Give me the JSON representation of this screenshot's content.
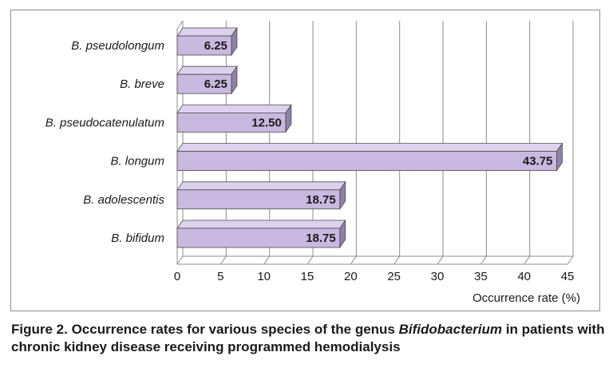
{
  "chart_data": {
    "type": "bar",
    "orientation": "horizontal",
    "style": "3d",
    "categories": [
      "B. pseudolongum",
      "B. breve",
      "B. pseudocatenulatum",
      "B. longum",
      "B. adolescentis",
      "B. bifidum"
    ],
    "values": [
      6.25,
      6.25,
      12.5,
      43.75,
      18.75,
      18.75
    ],
    "data_labels": [
      "6.25",
      "6.25",
      "12.50",
      "43.75",
      "18.75",
      "18.75"
    ],
    "xticks": [
      "0",
      "5",
      "10",
      "15",
      "20",
      "25",
      "30",
      "35",
      "40",
      "45"
    ],
    "xlim": [
      0,
      45
    ],
    "xlabel": "Occurrence rate (%)",
    "ylabel": "",
    "grid": "vertical",
    "legend": "none"
  },
  "caption": {
    "prefix": "Figure 2. Occurrence rates for various species of the genus ",
    "genus": "Bifidobacterium",
    "suffix": " in patients with chronic kidney disease receiving programmed hemodialysis"
  },
  "colors": {
    "bar_front": "#c9b9e0",
    "bar_top": "#ddd2ee",
    "bar_side": "#8f82a6",
    "bar_edge": "#4a4a4a",
    "grid": "#8c8c8c",
    "text": "#1a1a1a"
  }
}
